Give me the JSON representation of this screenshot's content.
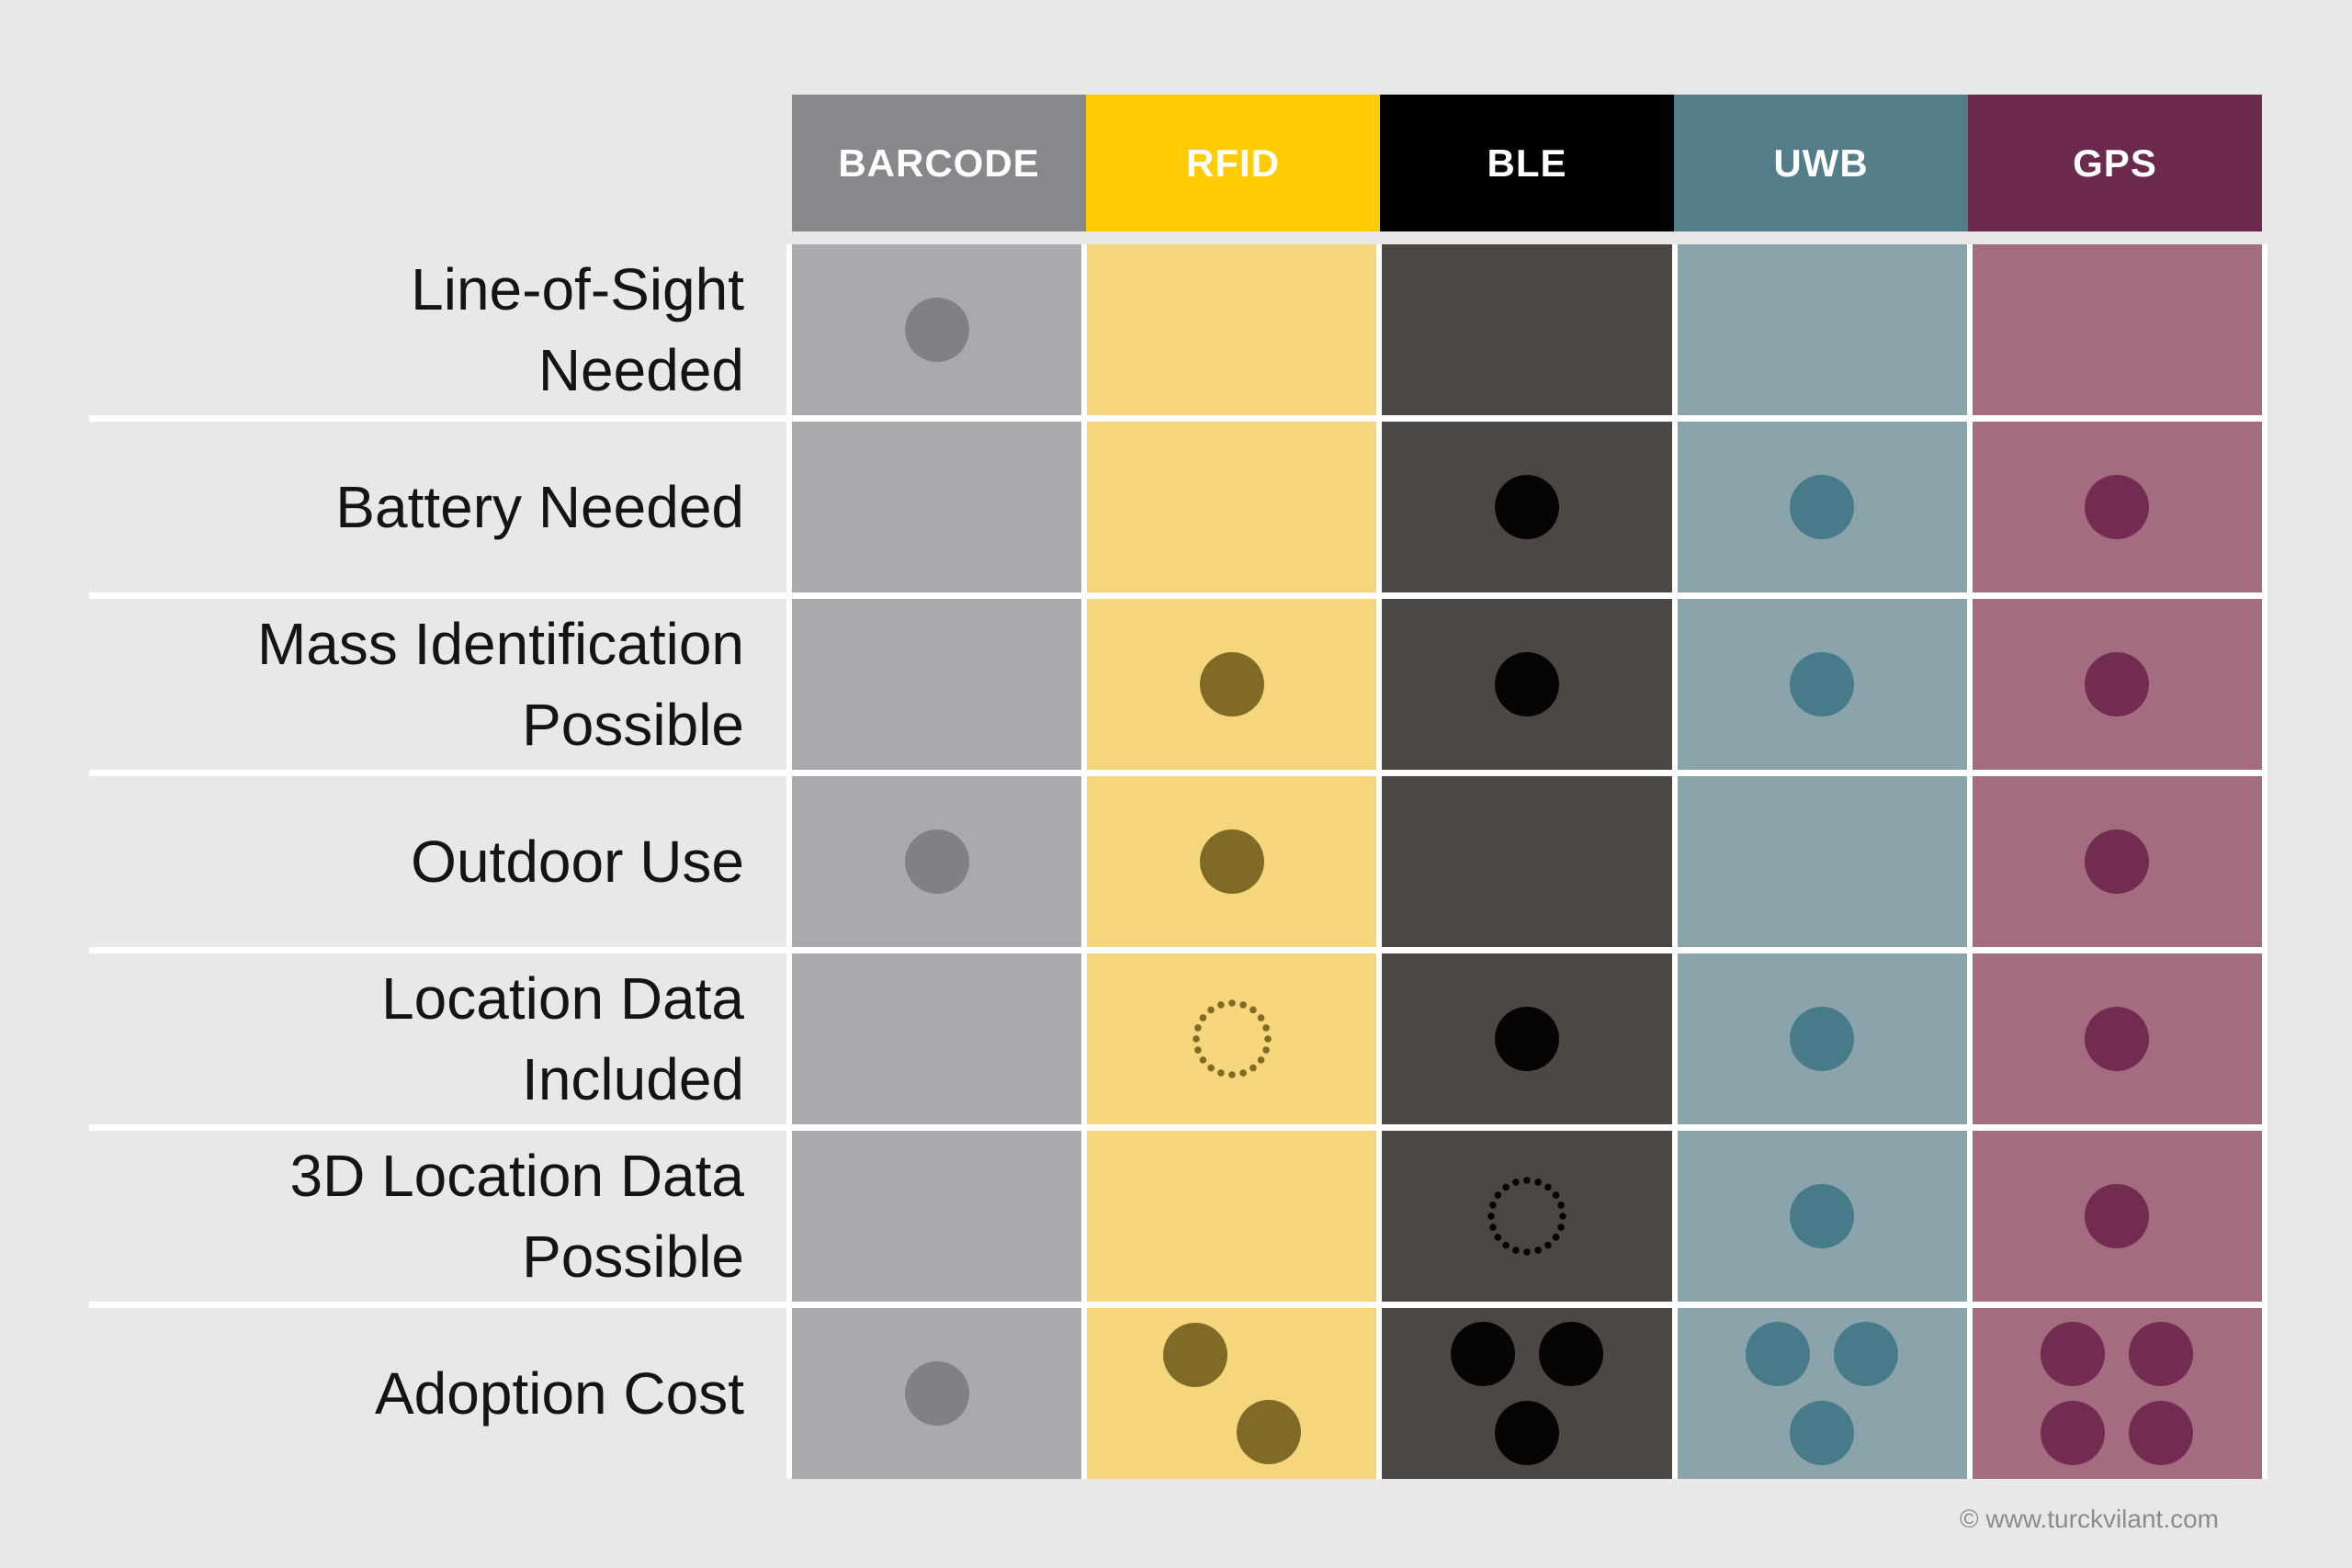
{
  "page": {
    "background_color": "#E8E8E9",
    "copyright": "© www.turckvilant.com"
  },
  "columns": [
    {
      "id": "barcode",
      "label": "BARCODE",
      "header_color": "#87888C",
      "body_color": "#A9AAAD",
      "dot_color": "#7F8185"
    },
    {
      "id": "rfid",
      "label": "RFID",
      "header_color": "#FFCB05",
      "body_color": "#F6D67C",
      "dot_color": "#7F6A26"
    },
    {
      "id": "ble",
      "label": "BLE",
      "header_color": "#000000",
      "body_color": "#4A4745",
      "dot_color": "#070503"
    },
    {
      "id": "uwb",
      "label": "UWB",
      "header_color": "#537D89",
      "body_color": "#8BA3AA",
      "dot_color": "#487B89"
    },
    {
      "id": "gps",
      "label": "GPS",
      "header_color": "#6B2A4C",
      "body_color": "#A46C7F",
      "dot_color": "#732B51"
    }
  ],
  "rows": [
    {
      "label_lines": [
        "Line-of-Sight",
        "Needed"
      ],
      "cells": [
        {
          "dots": 1
        },
        {
          "dots": 0
        },
        {
          "dots": 0
        },
        {
          "dots": 0
        },
        {
          "dots": 0
        }
      ]
    },
    {
      "label_lines": [
        "Battery Needed"
      ],
      "cells": [
        {
          "dots": 0
        },
        {
          "dots": 0
        },
        {
          "dots": 1
        },
        {
          "dots": 1
        },
        {
          "dots": 1
        }
      ]
    },
    {
      "label_lines": [
        "Mass Identification",
        "Possible"
      ],
      "cells": [
        {
          "dots": 0
        },
        {
          "dots": 1
        },
        {
          "dots": 1
        },
        {
          "dots": 1
        },
        {
          "dots": 1
        }
      ]
    },
    {
      "label_lines": [
        "Outdoor Use"
      ],
      "cells": [
        {
          "dots": 1
        },
        {
          "dots": 1
        },
        {
          "dots": 0
        },
        {
          "dots": 0
        },
        {
          "dots": 1
        }
      ]
    },
    {
      "label_lines": [
        "Location Data",
        "Included"
      ],
      "cells": [
        {
          "dots": 0
        },
        {
          "dots": 1,
          "style": "outline"
        },
        {
          "dots": 1
        },
        {
          "dots": 1
        },
        {
          "dots": 1
        }
      ]
    },
    {
      "label_lines": [
        "3D Location Data",
        "Possible"
      ],
      "cells": [
        {
          "dots": 0
        },
        {
          "dots": 0
        },
        {
          "dots": 1,
          "style": "outline"
        },
        {
          "dots": 1
        },
        {
          "dots": 1
        }
      ]
    },
    {
      "label_lines": [
        "Adoption Cost"
      ],
      "cells": [
        {
          "dots": 1
        },
        {
          "dots": 2
        },
        {
          "dots": 3
        },
        {
          "dots": 3
        },
        {
          "dots": 4
        }
      ]
    }
  ],
  "chart_data": {
    "type": "table",
    "title": "",
    "columns": [
      "BARCODE",
      "RFID",
      "BLE",
      "UWB",
      "GPS"
    ],
    "rows": [
      "Line-of-Sight Needed",
      "Battery Needed",
      "Mass Identification Possible",
      "Outdoor Use",
      "Location Data Included",
      "3D Location Data Possible",
      "Adoption Cost"
    ],
    "values": [
      [
        1,
        0,
        0,
        0,
        0
      ],
      [
        0,
        0,
        1,
        1,
        1
      ],
      [
        0,
        1,
        1,
        1,
        1
      ],
      [
        1,
        1,
        0,
        0,
        1
      ],
      [
        0,
        "dotted-outline",
        1,
        1,
        1
      ],
      [
        0,
        0,
        "dotted-outline",
        1,
        1
      ],
      [
        1,
        2,
        3,
        3,
        4
      ]
    ],
    "legend_position": "none",
    "grid": "white separators between rows and columns"
  }
}
